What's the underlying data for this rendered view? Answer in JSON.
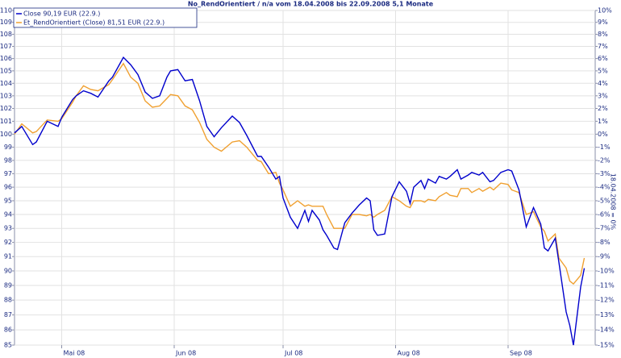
{
  "chart_data": {
    "type": "line",
    "title": "No_RendOrientiert / n/a vom 18.04.2008 bis 22.09.2008 5,1 Monate",
    "y2_label": "18.04.2008 = 0%",
    "log_scale": true,
    "grid": true,
    "legend": "top-left",
    "x": [
      0,
      2,
      5,
      6,
      9,
      12,
      13,
      16,
      17,
      19,
      21,
      23,
      26,
      27,
      30,
      32,
      34,
      36,
      38,
      40,
      42,
      43,
      45,
      47,
      49,
      51,
      53,
      55,
      57,
      60,
      62,
      64,
      67,
      68,
      70,
      72,
      73,
      74,
      76,
      78,
      80,
      81,
      82,
      84,
      85,
      86,
      88,
      89,
      91,
      93,
      95,
      97,
      98,
      99,
      100,
      102,
      104,
      106,
      108,
      109,
      110,
      112,
      113,
      114,
      116,
      117,
      119,
      120,
      122,
      123,
      125,
      126,
      128,
      129,
      131,
      132,
      134,
      136,
      137,
      139,
      141,
      143,
      145,
      146,
      147,
      149,
      150,
      152,
      153,
      154,
      156,
      157
    ],
    "xlim": [
      0,
      160
    ],
    "xticks": [
      {
        "value": 13,
        "label": "Mai 08"
      },
      {
        "value": 44,
        "label": "Jun 08"
      },
      {
        "value": 74,
        "label": "Jul 08"
      },
      {
        "value": 105,
        "label": "Aug 08"
      },
      {
        "value": 136,
        "label": "Sep 08"
      }
    ],
    "ylim": [
      85,
      110
    ],
    "yticks": [
      85,
      86,
      87,
      88,
      89,
      90,
      91,
      92,
      93,
      94,
      95,
      96,
      97,
      98,
      99,
      100,
      101,
      102,
      103,
      104,
      105,
      106,
      107,
      108,
      109,
      110
    ],
    "y2lim": [
      -15,
      10
    ],
    "y2ticks": [
      {
        "value": -15,
        "label": "-15%"
      },
      {
        "value": -14,
        "label": "-14%"
      },
      {
        "value": -13,
        "label": "-13%"
      },
      {
        "value": -12,
        "label": "-12%"
      },
      {
        "value": -11,
        "label": "-11%"
      },
      {
        "value": -10,
        "label": "-10%"
      },
      {
        "value": -9,
        "label": "-9%"
      },
      {
        "value": -8,
        "label": "-8%"
      },
      {
        "value": -7,
        "label": "-7%"
      },
      {
        "value": -6,
        "label": "-6%"
      },
      {
        "value": -5,
        "label": "-5%"
      },
      {
        "value": -4,
        "label": "-4%"
      },
      {
        "value": -3,
        "label": "-3%"
      },
      {
        "value": -2,
        "label": "-2%"
      },
      {
        "value": -1,
        "label": "-1%"
      },
      {
        "value": 0,
        "label": "0%"
      },
      {
        "value": 1,
        "label": "1%"
      },
      {
        "value": 2,
        "label": "2%"
      },
      {
        "value": 3,
        "label": "3%"
      },
      {
        "value": 4,
        "label": "4%"
      },
      {
        "value": 5,
        "label": "5%"
      },
      {
        "value": 6,
        "label": "6%"
      },
      {
        "value": 7,
        "label": "7%"
      },
      {
        "value": 8,
        "label": "8%"
      },
      {
        "value": 9,
        "label": "9%"
      },
      {
        "value": 10,
        "label": "10%"
      }
    ],
    "series": [
      {
        "name": "Close 90,19 EUR (22.9.)",
        "color": "#0000cc",
        "values": [
          100.1,
          100.6,
          99.2,
          99.4,
          101,
          100.6,
          101.3,
          102.7,
          103.0,
          103.4,
          103.2,
          102.9,
          104.2,
          104.5,
          106.1,
          105.5,
          104.7,
          103.3,
          102.8,
          103.0,
          104.5,
          105.0,
          105.1,
          104.2,
          104.3,
          102.6,
          100.6,
          99.8,
          100.5,
          101.4,
          100.9,
          99.9,
          98.3,
          98.3,
          97.5,
          96.6,
          96.8,
          95.2,
          93.8,
          93.0,
          94.3,
          93.5,
          94.3,
          93.6,
          92.9,
          92.5,
          91.6,
          91.5,
          93.4,
          94.1,
          94.7,
          95.2,
          95.0,
          92.9,
          92.5,
          92.6,
          95.3,
          96.4,
          95.7,
          94.8,
          96.0,
          96.5,
          95.9,
          96.6,
          96.3,
          96.8,
          96.6,
          96.8,
          97.3,
          96.6,
          96.9,
          97.1,
          96.9,
          97.1,
          96.4,
          96.5,
          97.1,
          97.3,
          97.2,
          95.8,
          93.1,
          94.5,
          93.3,
          91.6,
          91.4,
          92.3,
          90.6,
          87.2,
          86.3,
          85.0,
          88.9,
          90.19
        ]
      },
      {
        "name": "Et_RendOrientiert (Close) 81,51 EUR (22.9.)",
        "color": "#f0a030",
        "values": [
          100.0,
          100.8,
          100.1,
          100.2,
          101.1,
          101.0,
          101.2,
          102.5,
          103.0,
          103.8,
          103.5,
          103.4,
          103.9,
          104.3,
          105.6,
          104.5,
          104.0,
          102.6,
          102.1,
          102.2,
          102.8,
          103.1,
          103.0,
          102.2,
          101.9,
          100.9,
          99.6,
          99.0,
          98.7,
          99.4,
          99.5,
          99.0,
          98.0,
          97.9,
          97.0,
          97.1,
          96.3,
          95.8,
          94.6,
          95.0,
          94.6,
          94.7,
          94.6,
          94.6,
          94.6,
          94.0,
          93.0,
          93.0,
          93.0,
          94.0,
          94.0,
          93.9,
          94.0,
          93.8,
          94.0,
          94.3,
          95.3,
          95.0,
          94.6,
          94.5,
          95.0,
          95.0,
          94.9,
          95.1,
          95.0,
          95.3,
          95.6,
          95.4,
          95.3,
          95.9,
          95.9,
          95.6,
          95.9,
          95.7,
          96.0,
          95.8,
          96.3,
          96.2,
          95.8,
          95.6,
          94.0,
          94.2,
          93.1,
          92.8,
          92.1,
          92.6,
          90.9,
          90.2,
          89.3,
          89.1,
          89.7,
          90.9
        ]
      }
    ]
  }
}
